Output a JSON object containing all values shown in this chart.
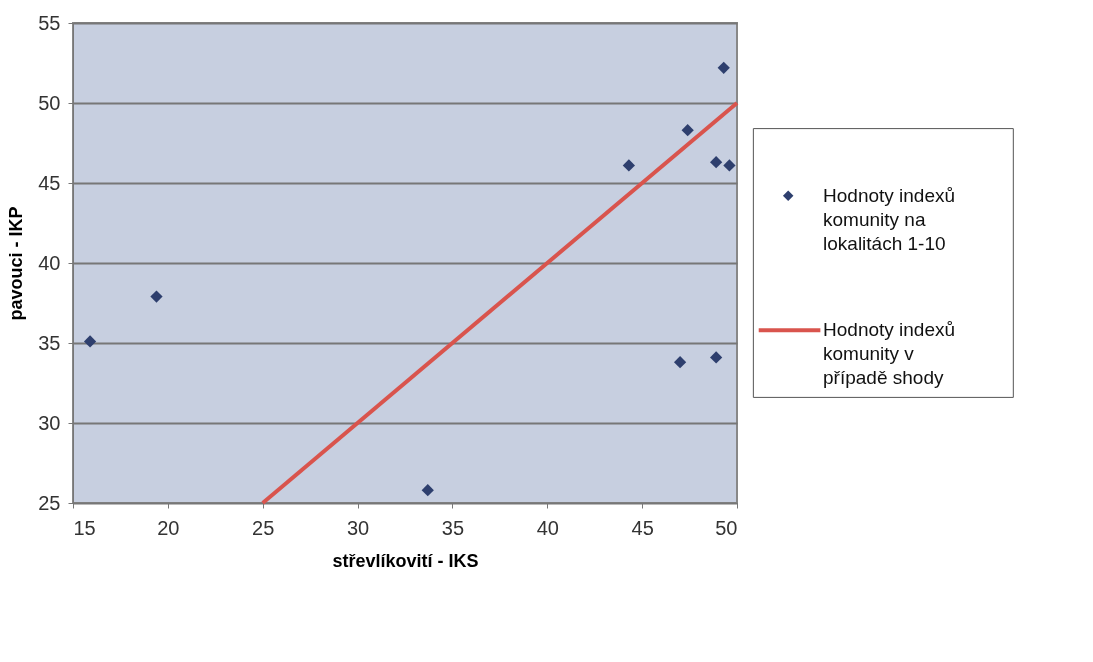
{
  "chart_data": {
    "type": "scatter",
    "xlabel": "střevlíkovití - IKS",
    "ylabel": "pavouci - IKP",
    "xlim": [
      15,
      50
    ],
    "xticks": [
      15,
      20,
      25,
      30,
      35,
      40,
      45,
      50
    ],
    "ylim": [
      25,
      55
    ],
    "yticks": [
      25,
      30,
      35,
      40,
      45,
      50,
      55
    ],
    "grid": "y",
    "legend": "right",
    "series": [
      {
        "name": "Hodnoty indexů komunity na lokalitách 1-10",
        "marker": "diamond",
        "color": "#2e3f6e",
        "x": [
          15.9,
          19.4,
          33.7,
          44.3,
          47.4,
          49.3,
          48.9,
          49.6,
          47.0,
          48.9
        ],
        "values": [
          35.1,
          37.9,
          25.8,
          46.1,
          48.3,
          52.2,
          46.3,
          46.1,
          33.8,
          34.1
        ]
      },
      {
        "name": "Hodnoty indexů komunity v případě shody",
        "type": "line",
        "color": "#d9544d",
        "x": [
          25,
          50
        ],
        "values": [
          25,
          50
        ]
      }
    ]
  }
}
